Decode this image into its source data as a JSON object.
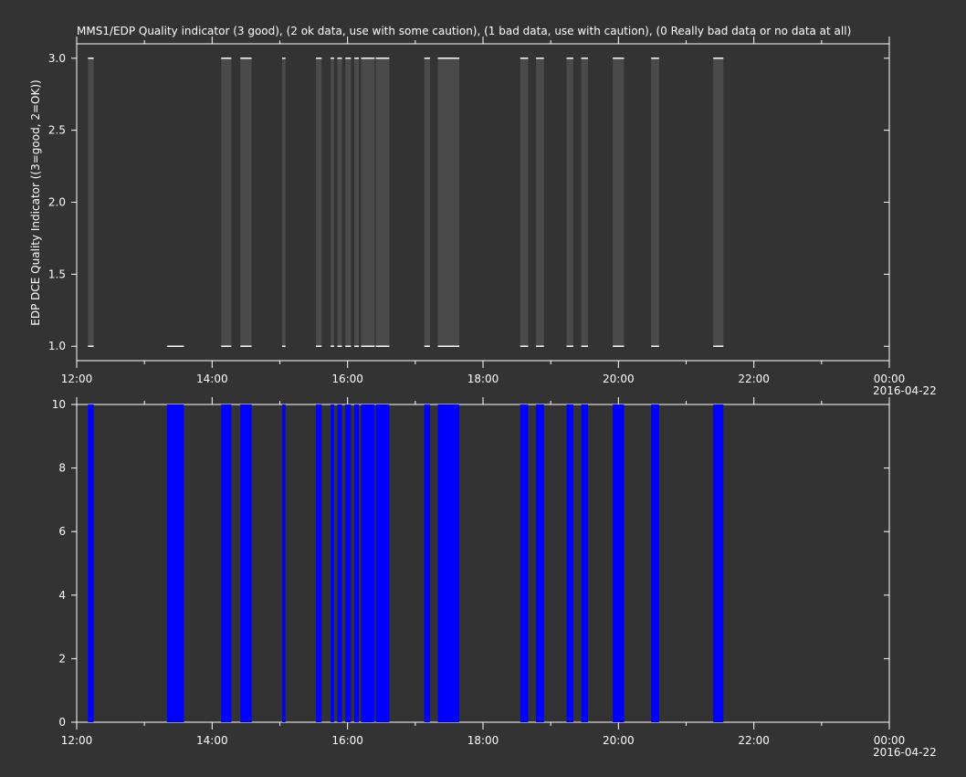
{
  "chart_data": [
    {
      "type": "bar",
      "title": "MMS1/EDP  Quality indicator (3 good), (2 ok data, use with some caution), (1 bad data, use with caution), (0 Really bad data or no data at all)",
      "ylabel": "EDP DCE Quality Indicator ((3=good, 2=OK))",
      "xlabel": "",
      "xlim": [
        "2016-04-21 12:00",
        "2016-04-22 00:00"
      ],
      "ylim": [
        0.9,
        3.1
      ],
      "yticks": [
        "1.0",
        "1.5",
        "2.0",
        "2.5",
        "3.0"
      ],
      "xticks": [
        "12:00",
        "14:00",
        "16:00",
        "18:00",
        "20:00",
        "22:00",
        "00:00"
      ],
      "xticks_sub": [
        "",
        "",
        "",
        "",
        "",
        "",
        "2016-04-22"
      ],
      "bar_color": "#4a4a4a",
      "line_color": "#ffffff",
      "intervals": [
        {
          "start": "12:10",
          "end": "12:15",
          "quality": "1-3"
        },
        {
          "start": "13:20",
          "end": "13:35",
          "quality": "1"
        },
        {
          "start": "14:08",
          "end": "14:17",
          "quality": "1-3"
        },
        {
          "start": "14:25",
          "end": "14:35",
          "quality": "1-3"
        },
        {
          "start": "15:02",
          "end": "15:05",
          "quality": "1-3"
        },
        {
          "start": "15:32",
          "end": "15:37",
          "quality": "1-3"
        },
        {
          "start": "15:45",
          "end": "15:48",
          "quality": "1-3"
        },
        {
          "start": "15:51",
          "end": "15:55",
          "quality": "1-3"
        },
        {
          "start": "15:58",
          "end": "16:03",
          "quality": "1-3"
        },
        {
          "start": "16:06",
          "end": "16:10",
          "quality": "1-3"
        },
        {
          "start": "16:12",
          "end": "16:24",
          "quality": "1-3"
        },
        {
          "start": "16:25",
          "end": "16:37",
          "quality": "1-3"
        },
        {
          "start": "17:08",
          "end": "17:13",
          "quality": "1-3"
        },
        {
          "start": "17:20",
          "end": "17:39",
          "quality": "1-3"
        },
        {
          "start": "18:33",
          "end": "18:40",
          "quality": "1-3"
        },
        {
          "start": "18:47",
          "end": "18:54",
          "quality": "1-3"
        },
        {
          "start": "19:14",
          "end": "19:20",
          "quality": "1-3"
        },
        {
          "start": "19:27",
          "end": "19:33",
          "quality": "1-3"
        },
        {
          "start": "19:55",
          "end": "20:05",
          "quality": "1-3"
        },
        {
          "start": "20:29",
          "end": "20:36",
          "quality": "1-3"
        },
        {
          "start": "21:24",
          "end": "21:33",
          "quality": "1-3"
        }
      ]
    },
    {
      "type": "bar",
      "title": "",
      "xlabel": "",
      "ylabel": "",
      "xlim": [
        "2016-04-21 12:00",
        "2016-04-22 00:00"
      ],
      "ylim": [
        0,
        10
      ],
      "yticks": [
        "0",
        "2",
        "4",
        "6",
        "8",
        "10"
      ],
      "xticks": [
        "12:00",
        "14:00",
        "16:00",
        "18:00",
        "20:00",
        "22:00",
        "00:00"
      ],
      "xticks_sub": [
        "",
        "",
        "",
        "",
        "",
        "",
        "2016-04-22"
      ],
      "bar_color": "#0000ff",
      "value": 10,
      "intervals": [
        {
          "start": "12:10",
          "end": "12:15"
        },
        {
          "start": "13:20",
          "end": "13:35"
        },
        {
          "start": "14:08",
          "end": "14:17"
        },
        {
          "start": "14:25",
          "end": "14:35"
        },
        {
          "start": "15:02",
          "end": "15:05"
        },
        {
          "start": "15:32",
          "end": "15:37"
        },
        {
          "start": "15:45",
          "end": "15:48"
        },
        {
          "start": "15:51",
          "end": "15:55"
        },
        {
          "start": "15:58",
          "end": "16:03"
        },
        {
          "start": "16:06",
          "end": "16:10"
        },
        {
          "start": "16:12",
          "end": "16:24"
        },
        {
          "start": "16:25",
          "end": "16:37"
        },
        {
          "start": "17:08",
          "end": "17:13"
        },
        {
          "start": "17:20",
          "end": "17:39"
        },
        {
          "start": "18:33",
          "end": "18:40"
        },
        {
          "start": "18:47",
          "end": "18:54"
        },
        {
          "start": "19:14",
          "end": "19:20"
        },
        {
          "start": "19:27",
          "end": "19:33"
        },
        {
          "start": "19:55",
          "end": "20:05"
        },
        {
          "start": "20:29",
          "end": "20:36"
        },
        {
          "start": "21:24",
          "end": "21:33"
        }
      ]
    }
  ]
}
